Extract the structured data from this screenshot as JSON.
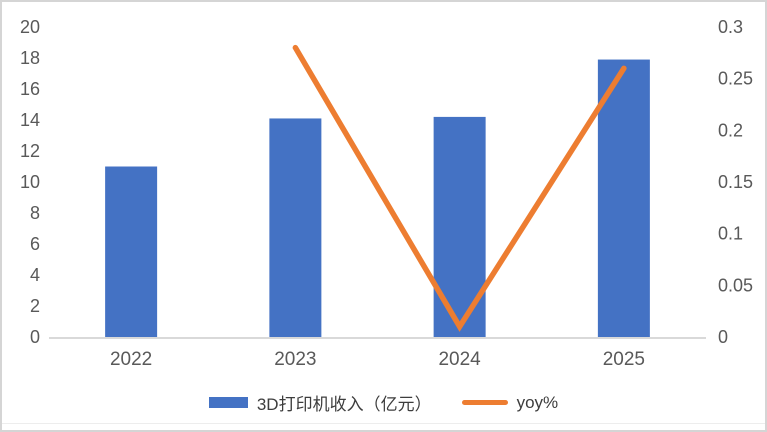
{
  "chart_data": {
    "type": "bar",
    "subtype": "combo-bar-line-dual-axis",
    "title": "",
    "categories": [
      "2022",
      "2023",
      "2024",
      "2025"
    ],
    "series": [
      {
        "name": "3D打印机收入（亿元）",
        "render": "bar",
        "axis": "left",
        "color": "#4472C4",
        "values": [
          11,
          14.1,
          14.2,
          17.9
        ]
      },
      {
        "name": "yoy%",
        "render": "line",
        "axis": "right",
        "color": "#ED7D31",
        "values": [
          null,
          0.28,
          0.01,
          0.26
        ]
      }
    ],
    "left_axis": {
      "min": 0,
      "max": 20,
      "step": 2,
      "ticks": [
        "0",
        "2",
        "4",
        "6",
        "8",
        "10",
        "12",
        "14",
        "16",
        "18",
        "20"
      ]
    },
    "right_axis": {
      "min": 0,
      "max": 0.3,
      "step": 0.05,
      "ticks": [
        "0",
        "0.05",
        "0.1",
        "0.15",
        "0.2",
        "0.25",
        "0.3"
      ]
    },
    "grid": false,
    "legend_position": "bottom",
    "axis_line_color": "#d9d9d9",
    "tick_label_color": "#595959"
  }
}
